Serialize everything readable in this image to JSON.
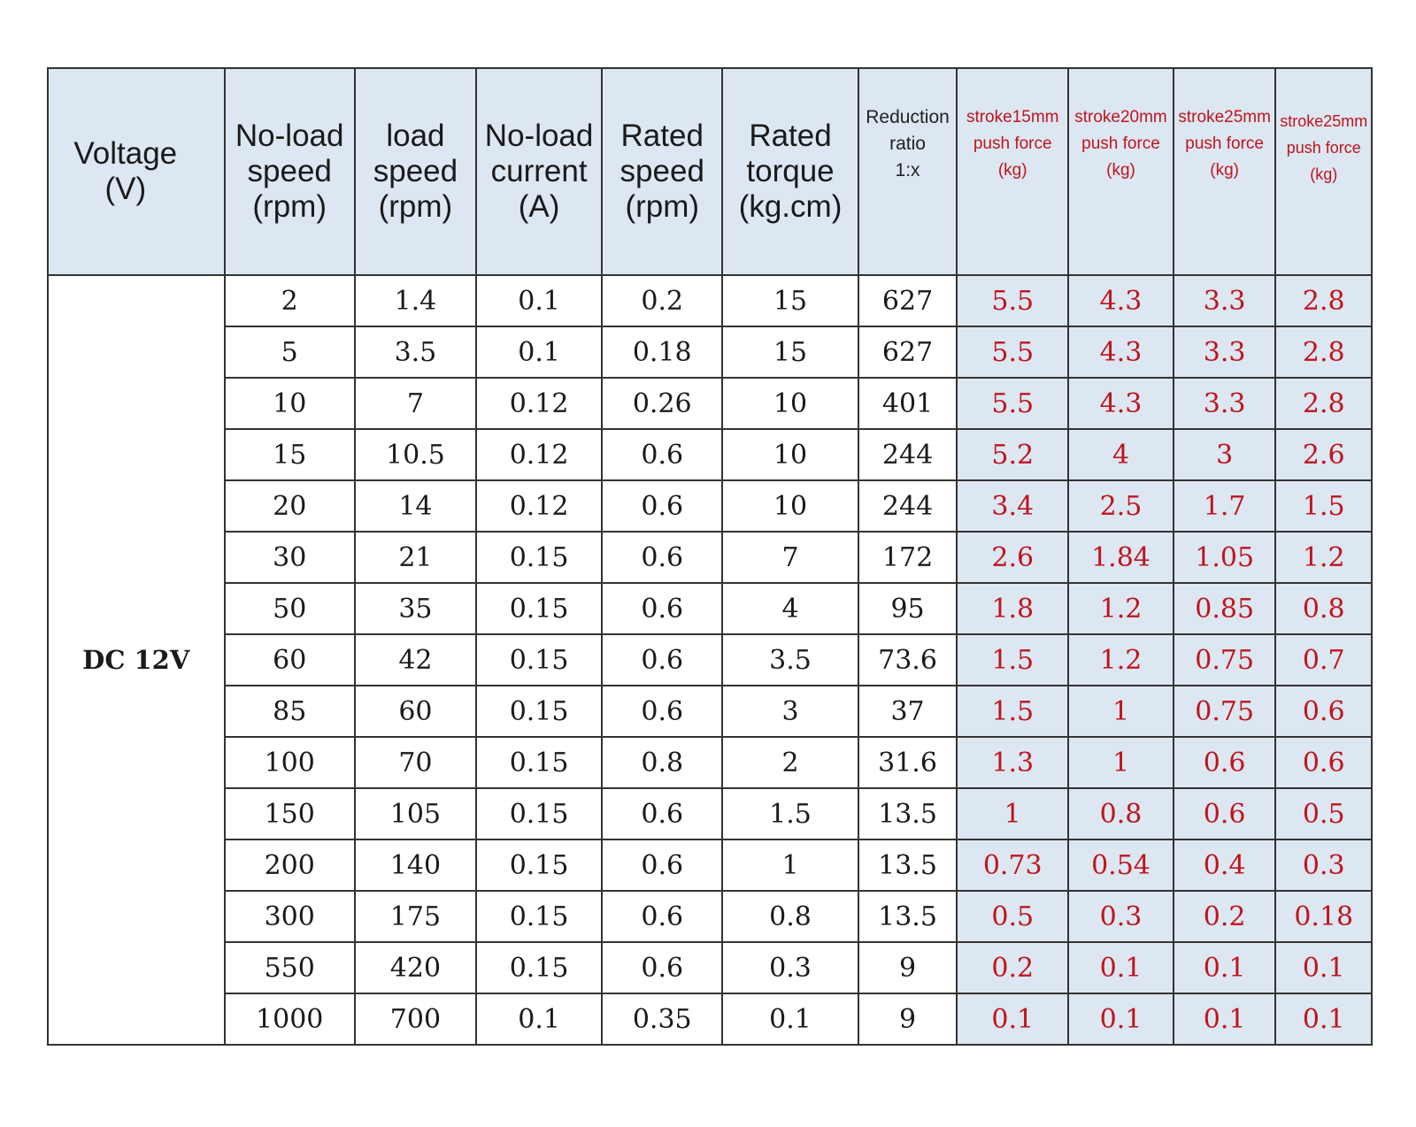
{
  "chart_data": {
    "type": "table",
    "headers": [
      [
        "Voltage",
        "(V)"
      ],
      [
        "No-load",
        "speed",
        "(rpm)"
      ],
      [
        "load",
        "speed",
        "(rpm)"
      ],
      [
        "No-load",
        "current",
        "(A)"
      ],
      [
        "Rated",
        "speed",
        "(rpm)"
      ],
      [
        "Rated",
        "torque",
        "(kg.cm)"
      ],
      [
        "Reduction",
        "ratio",
        "1:x"
      ],
      [
        "stroke15mm",
        "push force",
        "(kg)"
      ],
      [
        "stroke20mm",
        "push force",
        "(kg)"
      ],
      [
        "stroke25mm",
        "push force",
        "(kg)"
      ],
      [
        "stroke25mm",
        "push force",
        "(kg)"
      ]
    ],
    "voltage": "DC 12V",
    "rows": [
      [
        "2",
        "1.4",
        "0.1",
        "0.2",
        "15",
        "627",
        "5.5",
        "4.3",
        "3.3",
        "2.8"
      ],
      [
        "5",
        "3.5",
        "0.1",
        "0.18",
        "15",
        "627",
        "5.5",
        "4.3",
        "3.3",
        "2.8"
      ],
      [
        "10",
        "7",
        "0.12",
        "0.26",
        "10",
        "401",
        "5.5",
        "4.3",
        "3.3",
        "2.8"
      ],
      [
        "15",
        "10.5",
        "0.12",
        "0.6",
        "10",
        "244",
        "5.2",
        "4",
        "3",
        "2.6"
      ],
      [
        "20",
        "14",
        "0.12",
        "0.6",
        "10",
        "244",
        "3.4",
        "2.5",
        "1.7",
        "1.5"
      ],
      [
        "30",
        "21",
        "0.15",
        "0.6",
        "7",
        "172",
        "2.6",
        "1.84",
        "1.05",
        "1.2"
      ],
      [
        "50",
        "35",
        "0.15",
        "0.6",
        "4",
        "95",
        "1.8",
        "1.2",
        "0.85",
        "0.8"
      ],
      [
        "60",
        "42",
        "0.15",
        "0.6",
        "3.5",
        "73.6",
        "1.5",
        "1.2",
        "0.75",
        "0.7"
      ],
      [
        "85",
        "60",
        "0.15",
        "0.6",
        "3",
        "37",
        "1.5",
        "1",
        "0.75",
        "0.6"
      ],
      [
        "100",
        "70",
        "0.15",
        "0.8",
        "2",
        "31.6",
        "1.3",
        "1",
        "0.6",
        "0.6"
      ],
      [
        "150",
        "105",
        "0.15",
        "0.6",
        "1.5",
        "13.5",
        "1",
        "0.8",
        "0.6",
        "0.5"
      ],
      [
        "200",
        "140",
        "0.15",
        "0.6",
        "1",
        "13.5",
        "0.73",
        "0.54",
        "0.4",
        "0.3"
      ],
      [
        "300",
        "175",
        "0.15",
        "0.6",
        "0.8",
        "13.5",
        "0.5",
        "0.3",
        "0.2",
        "0.18"
      ],
      [
        "550",
        "420",
        "0.15",
        "0.6",
        "0.3",
        "9",
        "0.2",
        "0.1",
        "0.1",
        "0.1"
      ],
      [
        "1000",
        "700",
        "0.1",
        "0.35",
        "0.1",
        "9",
        "0.1",
        "0.1",
        "0.1",
        "0.1"
      ]
    ]
  },
  "colors": {
    "header_bg": "#dce7f2",
    "force_bg": "#dce7f2",
    "force_text": "#c0141c",
    "grid": "#333333"
  }
}
